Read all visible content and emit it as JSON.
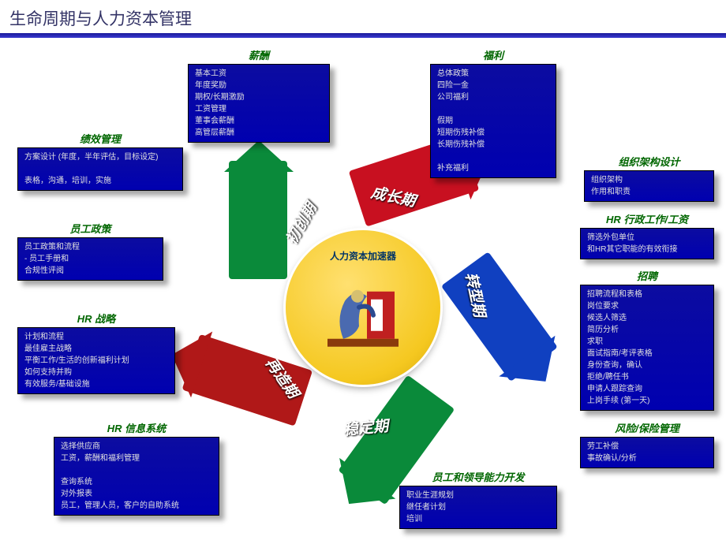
{
  "title": "生命周期与人力资本管理",
  "colors": {
    "panel_bg": "#0c0ca0",
    "title_green": "#006600",
    "seg_startup": "#00a04a",
    "seg_growth": "#c81020",
    "seg_transition": "#0b3aa0",
    "seg_stable": "#0a8a3a",
    "seg_reengineer": "#b01818",
    "seg_initial": "#1040c0",
    "core_bg": "#f5c820"
  },
  "cycle": {
    "center_label": "人力资本加速器",
    "segments": [
      {
        "label": "初创期",
        "color": "#0a8a3a"
      },
      {
        "label": "成长期",
        "color": "#c81020"
      },
      {
        "label": "转型期",
        "color": "#1040c0"
      },
      {
        "label": "稳定期",
        "color": "#0a8a3a"
      },
      {
        "label": "再造期",
        "color": "#b01818"
      }
    ]
  },
  "boxes": {
    "compensation": {
      "title": "薪酬",
      "items": [
        "基本工资",
        "年度奖励",
        "期权/长期激励",
        "工资管理",
        "董事会薪酬",
        "高管层薪酬"
      ]
    },
    "welfare": {
      "title": "福利",
      "items": [
        "总体政策",
        "四险一金",
        "公司福利",
        "",
        "假期",
        "短期伤残补偿",
        "长期伤残补偿",
        "",
        "补充福利"
      ]
    },
    "performance": {
      "title": "绩效管理",
      "items": [
        "方案设计 (年度，半年评估，目标设定)",
        "",
        "表格，沟通，培训，实施"
      ]
    },
    "org_design": {
      "title": "组织架构设计",
      "items": [
        "组织架构",
        "作用和职责"
      ]
    },
    "hr_admin": {
      "title": "HR 行政工作/工资",
      "items": [
        "筛选外包单位",
        "和HR其它职能的有效衔接"
      ]
    },
    "employee_policy": {
      "title": "员工政策",
      "items": [
        "员工政策和流程",
        "- 员工手册和",
        "合规性评阅"
      ]
    },
    "recruit": {
      "title": "招聘",
      "items": [
        "招聘流程和表格",
        "岗位要求",
        "候选人筛选",
        "简历分析",
        "求职",
        "面试指南/考评表格",
        "身份查询，确认",
        "拒绝/聘任书",
        "申请人跟踪查询",
        "上岗手续 (第一天)"
      ]
    },
    "hr_strategy": {
      "title": "HR 战略",
      "items": [
        "计划和流程",
        "最佳雇主战略",
        "平衡工作/生活的创新福利计划",
        "如何支持并购",
        "有效服务/基础设施"
      ]
    },
    "risk": {
      "title": "风险/保险管理",
      "items": [
        "劳工补偿",
        "事故确认/分析"
      ]
    },
    "hr_info": {
      "title": "HR 信息系统",
      "items": [
        "选择供应商",
        "工资，薪酬和福利管理",
        "",
        "查询系统",
        "对外报表",
        "员工，管理人员，客户的自助系统"
      ]
    },
    "dev": {
      "title": "员工和领导能力开发",
      "items": [
        "职业生涯规划",
        "继任者计划",
        "培训"
      ]
    }
  }
}
